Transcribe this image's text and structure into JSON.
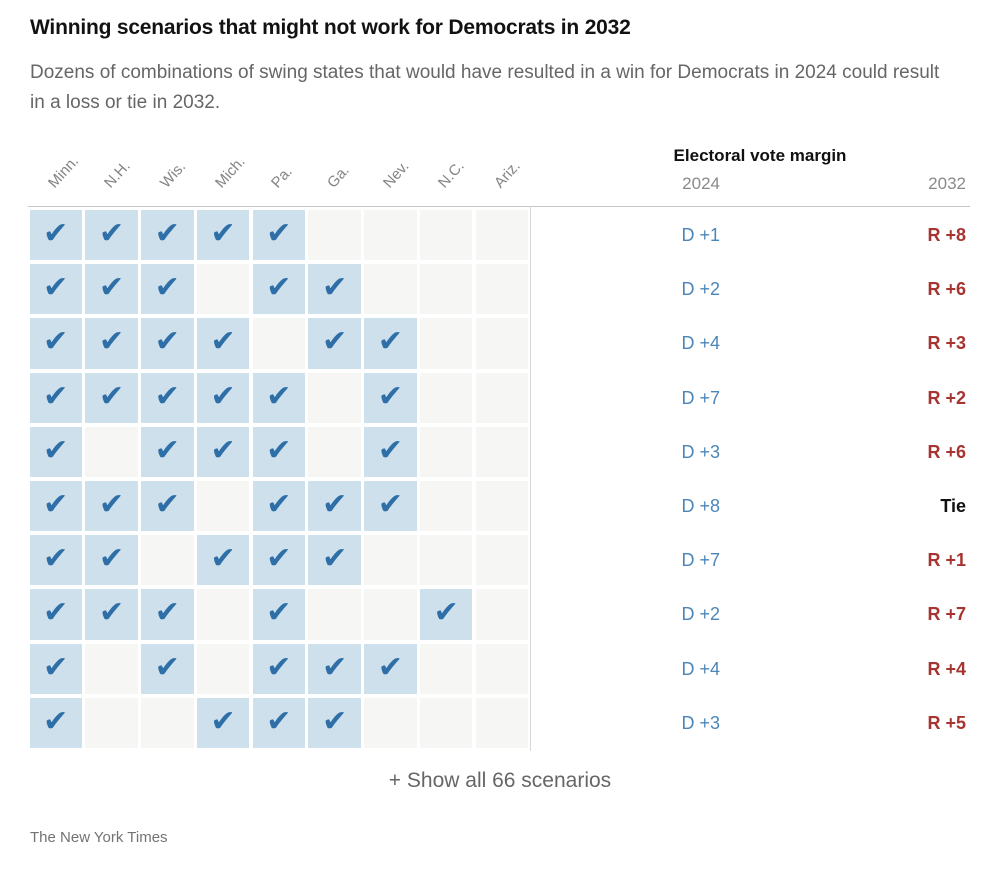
{
  "title": "Winning scenarios that might not work for Democrats in 2032",
  "subtitle": "Dozens of combinations of swing states that would have resulted in a win for Democrats in 2024 could result in a loss or tie in 2032.",
  "margin_header": {
    "title": "Electoral vote margin",
    "y2024": "2024",
    "y2032": "2032"
  },
  "icons": {
    "check": "✔"
  },
  "colors": {
    "check": "#2e6fa7",
    "cell_checked": "#cfe0ed",
    "cell_unchecked": "#f6f6f5",
    "dem": "#4c86b8",
    "rep": "#a63430",
    "tie": "#111111",
    "rule": "#c6c6c6"
  },
  "show_all_label": "+ Show all 66 scenarios",
  "source": "The New York Times",
  "chart_data": {
    "type": "table",
    "title": "Winning scenarios that might not work for Democrats in 2032",
    "columns": [
      "Minn.",
      "N.H.",
      "Wis.",
      "Mich.",
      "Pa.",
      "Ga.",
      "Nev.",
      "N.C.",
      "Ariz."
    ],
    "value_columns": [
      "2024",
      "2032"
    ],
    "rows": [
      {
        "checked": [
          1,
          1,
          1,
          1,
          1,
          0,
          0,
          0,
          0
        ],
        "margin_2024": "D +1",
        "margin_2032": "R +8",
        "result_2032": "R"
      },
      {
        "checked": [
          1,
          1,
          1,
          0,
          1,
          1,
          0,
          0,
          0
        ],
        "margin_2024": "D +2",
        "margin_2032": "R +6",
        "result_2032": "R"
      },
      {
        "checked": [
          1,
          1,
          1,
          1,
          0,
          1,
          1,
          0,
          0
        ],
        "margin_2024": "D +4",
        "margin_2032": "R +3",
        "result_2032": "R"
      },
      {
        "checked": [
          1,
          1,
          1,
          1,
          1,
          0,
          1,
          0,
          0
        ],
        "margin_2024": "D +7",
        "margin_2032": "R +2",
        "result_2032": "R"
      },
      {
        "checked": [
          1,
          0,
          1,
          1,
          1,
          0,
          1,
          0,
          0
        ],
        "margin_2024": "D +3",
        "margin_2032": "R +6",
        "result_2032": "R"
      },
      {
        "checked": [
          1,
          1,
          1,
          0,
          1,
          1,
          1,
          0,
          0
        ],
        "margin_2024": "D +8",
        "margin_2032": "Tie",
        "result_2032": "Tie"
      },
      {
        "checked": [
          1,
          1,
          0,
          1,
          1,
          1,
          0,
          0,
          0
        ],
        "margin_2024": "D +7",
        "margin_2032": "R +1",
        "result_2032": "R"
      },
      {
        "checked": [
          1,
          1,
          1,
          0,
          1,
          0,
          0,
          1,
          0
        ],
        "margin_2024": "D +2",
        "margin_2032": "R +7",
        "result_2032": "R"
      },
      {
        "checked": [
          1,
          0,
          1,
          0,
          1,
          1,
          1,
          0,
          0
        ],
        "margin_2024": "D +4",
        "margin_2032": "R +4",
        "result_2032": "R"
      },
      {
        "checked": [
          1,
          0,
          0,
          1,
          1,
          1,
          0,
          0,
          0
        ],
        "margin_2024": "D +3",
        "margin_2032": "R +5",
        "result_2032": "R"
      }
    ]
  }
}
